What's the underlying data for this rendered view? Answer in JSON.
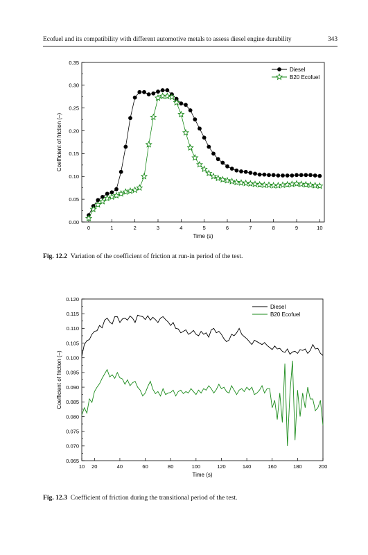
{
  "header": {
    "title": "Ecofuel and its compatibility with different automotive metals to assess diesel engine durability",
    "page_number": "343"
  },
  "figures": [
    {
      "caption_label": "Fig. 12.2",
      "caption_text": "Variation of the coefficient of friction at run-in period of the test."
    },
    {
      "caption_label": "Fig. 12.3",
      "caption_text": "Coefficient of friction during the transitional period of the test."
    }
  ],
  "chart_data": [
    {
      "type": "line",
      "xlabel": "Time (s)",
      "ylabel": "Coefficient of friction (–)",
      "xlim": [
        -0.3,
        10.2
      ],
      "ylim": [
        0,
        0.35
      ],
      "xticks": [
        "0",
        "1",
        "2",
        "3",
        "4",
        "5",
        "6",
        "7",
        "8",
        "9",
        "10"
      ],
      "yticks": [
        "0.00",
        "0.05",
        "0.10",
        "0.15",
        "0.20",
        "0.25",
        "0.30",
        "0.35"
      ],
      "legend_position": "top-right",
      "series": [
        {
          "name": "Diesel",
          "color": "#000000",
          "marker": "circle",
          "x": [
            0,
            0.2,
            0.4,
            0.6,
            0.8,
            1,
            1.2,
            1.4,
            1.6,
            1.8,
            2,
            2.2,
            2.4,
            2.6,
            2.8,
            3,
            3.2,
            3.4,
            3.6,
            3.8,
            4,
            4.2,
            4.4,
            4.6,
            4.8,
            5,
            5.2,
            5.4,
            5.6,
            5.8,
            6,
            6.2,
            6.4,
            6.6,
            6.8,
            7,
            7.2,
            7.4,
            7.6,
            7.8,
            8,
            8.2,
            8.4,
            8.6,
            8.8,
            9,
            9.2,
            9.4,
            9.6,
            9.8,
            10
          ],
          "y": [
            0.015,
            0.035,
            0.048,
            0.055,
            0.062,
            0.065,
            0.072,
            0.11,
            0.165,
            0.228,
            0.273,
            0.285,
            0.285,
            0.28,
            0.282,
            0.286,
            0.289,
            0.289,
            0.28,
            0.27,
            0.26,
            0.257,
            0.245,
            0.225,
            0.205,
            0.185,
            0.165,
            0.15,
            0.138,
            0.13,
            0.122,
            0.117,
            0.113,
            0.111,
            0.11,
            0.108,
            0.106,
            0.104,
            0.104,
            0.103,
            0.103,
            0.102,
            0.102,
            0.102,
            0.102,
            0.103,
            0.103,
            0.103,
            0.103,
            0.102,
            0.101
          ]
        },
        {
          "name": "B20 Ecofuel",
          "color": "#1a8a1a",
          "marker": "star",
          "x": [
            0,
            0.2,
            0.4,
            0.6,
            0.8,
            1,
            1.2,
            1.4,
            1.6,
            1.8,
            2,
            2.2,
            2.4,
            2.6,
            2.8,
            3,
            3.2,
            3.4,
            3.6,
            3.8,
            4,
            4.2,
            4.4,
            4.6,
            4.8,
            5,
            5.2,
            5.4,
            5.6,
            5.8,
            6,
            6.2,
            6.4,
            6.6,
            6.8,
            7,
            7.2,
            7.4,
            7.6,
            7.8,
            8,
            8.2,
            8.4,
            8.6,
            8.8,
            9,
            9.2,
            9.4,
            9.6,
            9.8,
            10
          ],
          "y": [
            0.008,
            0.028,
            0.038,
            0.045,
            0.052,
            0.055,
            0.058,
            0.062,
            0.066,
            0.068,
            0.07,
            0.075,
            0.1,
            0.17,
            0.23,
            0.272,
            0.276,
            0.276,
            0.274,
            0.262,
            0.236,
            0.196,
            0.163,
            0.141,
            0.126,
            0.116,
            0.107,
            0.1,
            0.096,
            0.093,
            0.091,
            0.089,
            0.087,
            0.086,
            0.085,
            0.084,
            0.083,
            0.082,
            0.081,
            0.081,
            0.08,
            0.08,
            0.081,
            0.082,
            0.083,
            0.084,
            0.083,
            0.082,
            0.081,
            0.08,
            0.079
          ]
        }
      ]
    },
    {
      "type": "line",
      "xlabel": "Time (s)",
      "ylabel": "Coefficient of friction (–)",
      "xlim": [
        10,
        200
      ],
      "ylim": [
        0.065,
        0.12
      ],
      "xticks": [
        "10",
        "20",
        "40",
        "60",
        "80",
        "100",
        "120",
        "140",
        "160",
        "180",
        "200"
      ],
      "yticks": [
        "0.065",
        "0.070",
        "0.075",
        "0.080",
        "0.085",
        "0.090",
        "0.095",
        "0.100",
        "0.105",
        "0.110",
        "0.115",
        "0.120"
      ],
      "legend_position": "top-right",
      "series": [
        {
          "name": "Diesel",
          "color": "#000000",
          "x": [
            10,
            12,
            14,
            16,
            18,
            20,
            22,
            24,
            26,
            28,
            30,
            32,
            34,
            36,
            38,
            40,
            42,
            44,
            46,
            48,
            50,
            52,
            54,
            56,
            58,
            60,
            62,
            64,
            66,
            68,
            70,
            72,
            74,
            76,
            78,
            80,
            82,
            84,
            86,
            88,
            90,
            92,
            94,
            96,
            98,
            100,
            102,
            104,
            106,
            108,
            110,
            112,
            114,
            116,
            118,
            120,
            122,
            124,
            126,
            128,
            130,
            132,
            134,
            136,
            138,
            140,
            142,
            144,
            146,
            148,
            150,
            152,
            154,
            156,
            158,
            160,
            162,
            164,
            166,
            168,
            170,
            172,
            174,
            176,
            178,
            180,
            182,
            184,
            186,
            188,
            190,
            192,
            194,
            196,
            198,
            200
          ],
          "y": [
            0.1005,
            0.1045,
            0.1058,
            0.1062,
            0.108,
            0.109,
            0.1092,
            0.111,
            0.1102,
            0.1128,
            0.1135,
            0.1122,
            0.1115,
            0.114,
            0.114,
            0.112,
            0.1132,
            0.1135,
            0.1128,
            0.1142,
            0.1135,
            0.112,
            0.1145,
            0.1142,
            0.114,
            0.113,
            0.1143,
            0.1128,
            0.1138,
            0.113,
            0.112,
            0.1135,
            0.114,
            0.113,
            0.1122,
            0.111,
            0.112,
            0.11,
            0.1098,
            0.1085,
            0.109,
            0.1095,
            0.108,
            0.1085,
            0.1093,
            0.108,
            0.1075,
            0.109,
            0.108,
            0.1085,
            0.107,
            0.1095,
            0.11,
            0.1085,
            0.109,
            0.108,
            0.1065,
            0.1055,
            0.106,
            0.108,
            0.1075,
            0.1085,
            0.11,
            0.108,
            0.1072,
            0.1065,
            0.1055,
            0.1045,
            0.106,
            0.1055,
            0.105,
            0.1045,
            0.1052,
            0.1042,
            0.1035,
            0.1028,
            0.104,
            0.103,
            0.1032,
            0.1022,
            0.1018,
            0.103,
            0.1012,
            0.102,
            0.1022,
            0.1015,
            0.1028,
            0.1025,
            0.103,
            0.1015,
            0.1025,
            0.1045,
            0.103,
            0.1032,
            0.1015,
            0.1008
          ]
        },
        {
          "name": "B20 Ecofuel",
          "color": "#1a8a1a",
          "x": [
            10,
            12,
            14,
            16,
            18,
            20,
            22,
            24,
            26,
            28,
            30,
            32,
            34,
            36,
            38,
            40,
            42,
            44,
            46,
            48,
            50,
            52,
            54,
            56,
            58,
            60,
            62,
            64,
            66,
            68,
            70,
            72,
            74,
            76,
            78,
            80,
            82,
            84,
            86,
            88,
            90,
            92,
            94,
            96,
            98,
            100,
            102,
            104,
            106,
            108,
            110,
            112,
            114,
            116,
            118,
            120,
            122,
            124,
            126,
            128,
            130,
            132,
            134,
            136,
            138,
            140,
            142,
            144,
            146,
            148,
            150,
            152,
            154,
            156,
            158,
            160,
            162,
            164,
            166,
            168,
            170,
            172,
            174,
            176,
            178,
            180,
            182,
            184,
            186,
            188,
            190,
            192,
            194,
            196,
            198,
            200
          ],
          "y": [
            0.0805,
            0.083,
            0.0812,
            0.086,
            0.0848,
            0.0885,
            0.09,
            0.0912,
            0.093,
            0.0945,
            0.096,
            0.0935,
            0.0942,
            0.093,
            0.095,
            0.0932,
            0.0928,
            0.091,
            0.0925,
            0.0905,
            0.0915,
            0.092,
            0.09,
            0.089,
            0.087,
            0.088,
            0.0902,
            0.092,
            0.0893,
            0.0878,
            0.0885,
            0.087,
            0.0895,
            0.0875,
            0.088,
            0.0882,
            0.089,
            0.087,
            0.0885,
            0.089,
            0.0878,
            0.0885,
            0.088,
            0.0895,
            0.0885,
            0.0875,
            0.089,
            0.088,
            0.0895,
            0.089,
            0.0905,
            0.0895,
            0.088,
            0.0892,
            0.091,
            0.0895,
            0.09,
            0.0885,
            0.088,
            0.0905,
            0.089,
            0.0875,
            0.089,
            0.0895,
            0.0885,
            0.09,
            0.089,
            0.09,
            0.0875,
            0.088,
            0.089,
            0.0905,
            0.088,
            0.0895,
            0.0895,
            0.083,
            0.0855,
            0.079,
            0.088,
            0.078,
            0.098,
            0.07,
            0.088,
            0.099,
            0.072,
            0.089,
            0.08,
            0.088,
            0.083,
            0.09,
            0.086,
            0.086,
            0.082,
            0.083,
            0.0855,
            0.077
          ]
        }
      ]
    }
  ]
}
